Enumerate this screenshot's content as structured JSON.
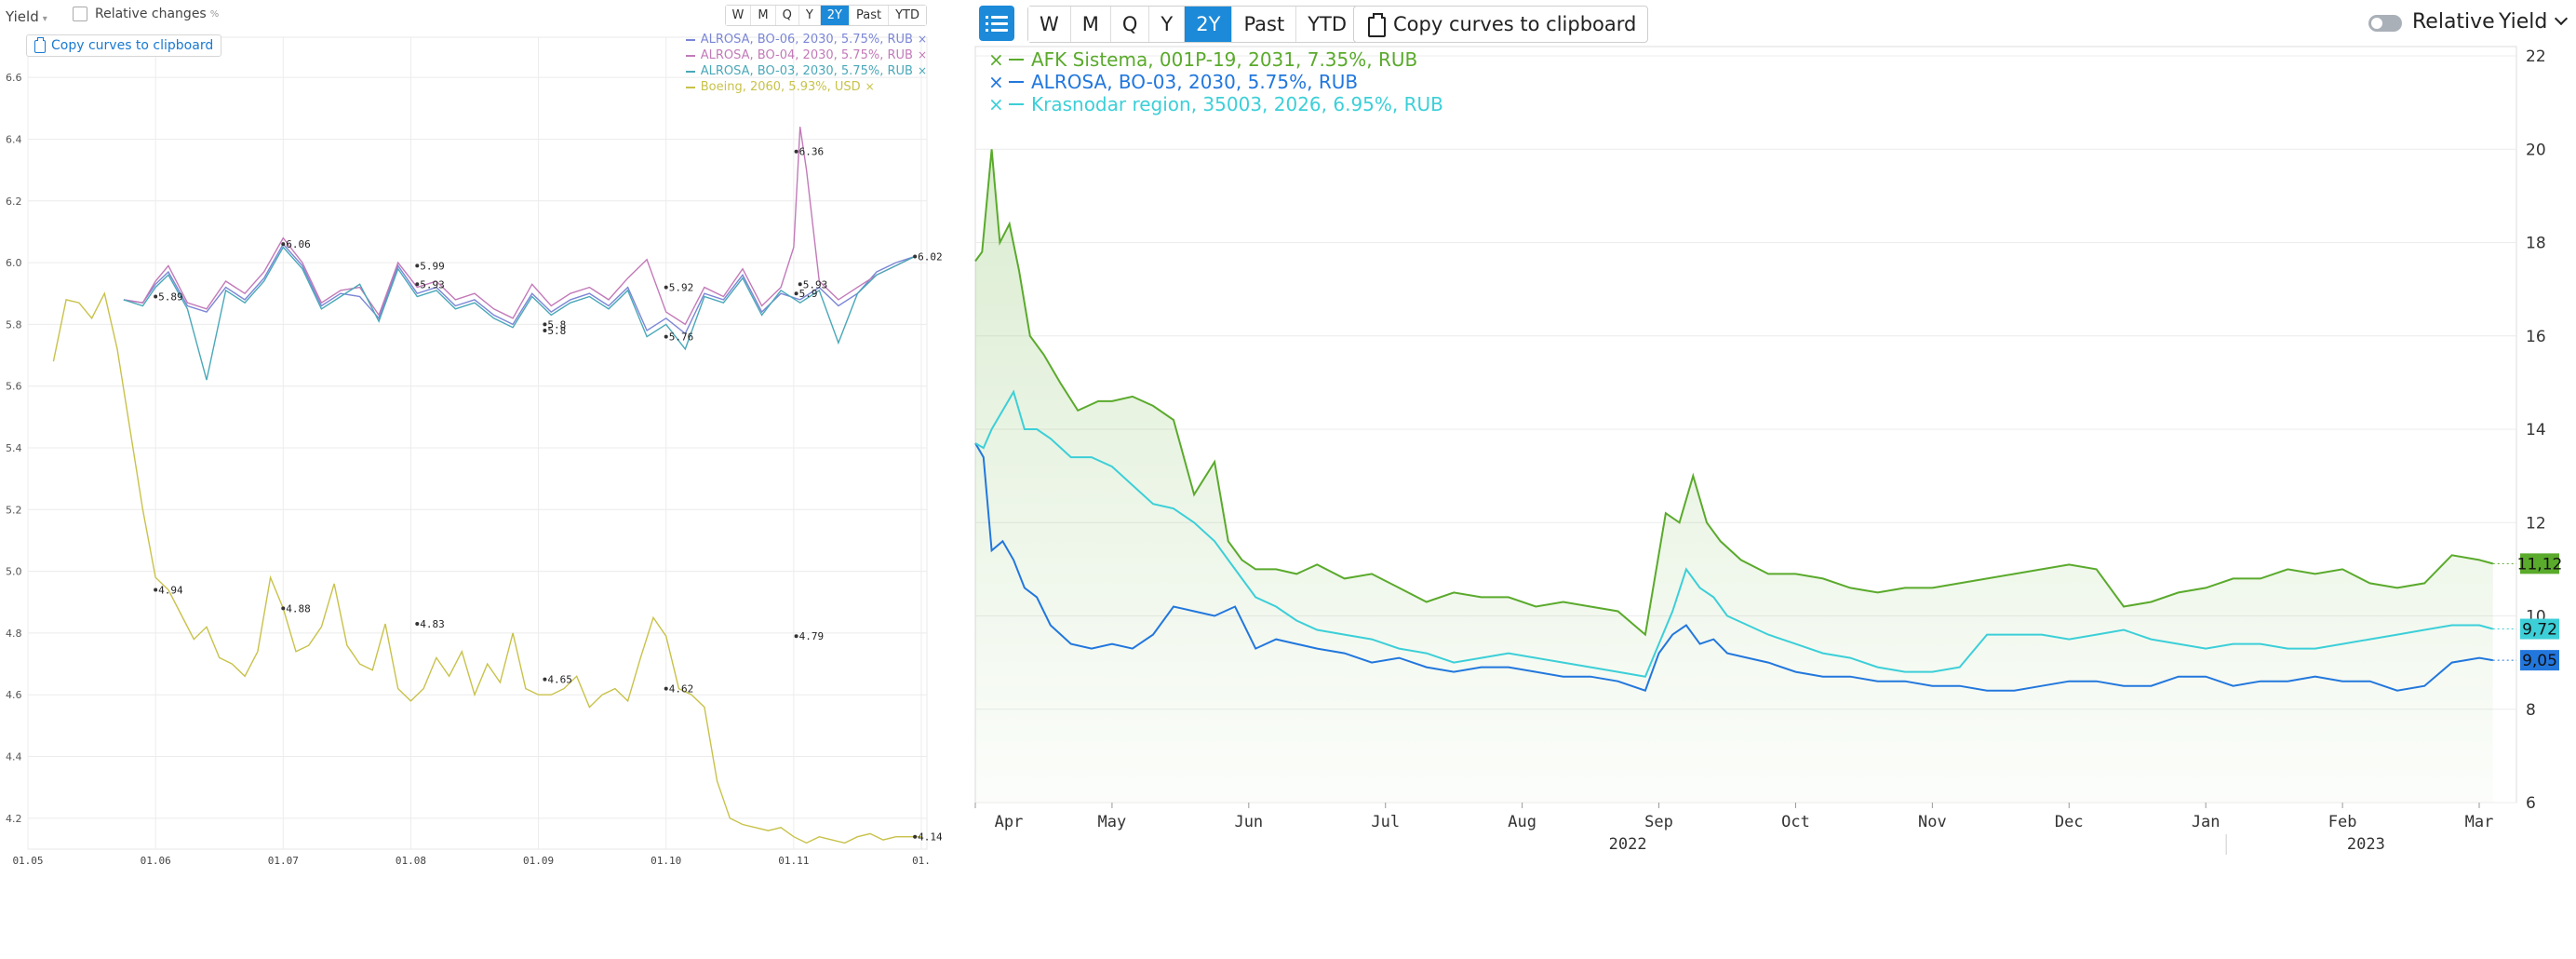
{
  "left": {
    "toolbar": {
      "yield_label": "Yield",
      "relative_label": "Relative changes",
      "relative_unit": "%",
      "periods": [
        "W",
        "M",
        "Q",
        "Y",
        "2Y",
        "Past",
        "YTD"
      ],
      "active_period": "2Y",
      "copy_label": "Copy curves to clipboard"
    },
    "legend": [
      {
        "label": "ALROSA, BO-06, 2030, 5.75%, RUB",
        "color": "#7b86d6"
      },
      {
        "label": "ALROSA, BO-04, 2030, 5.75%, RUB",
        "color": "#c27ab8"
      },
      {
        "label": "ALROSA, BO-03, 2030, 5.75%, RUB",
        "color": "#4aa8b8"
      },
      {
        "label": "Boeing, 2060, 5.93%, USD",
        "color": "#c8c24a"
      }
    ],
    "chart_data": {
      "type": "line",
      "ylim": [
        4.1,
        6.7
      ],
      "yticks": [
        "6.6",
        "6.4",
        "6.2",
        "6.0",
        "5.8",
        "5.6",
        "5.4",
        "5.2",
        "5.0",
        "4.8",
        "4.6",
        "4.4",
        "4.2"
      ],
      "xticks": [
        "01.05",
        "01.06",
        "01.07",
        "01.08",
        "01.09",
        "01.10",
        "01.11",
        "01."
      ],
      "series": [
        {
          "name": "ALROSA, BO-06, 2030, 5.75%, RUB",
          "color": "#7b86d6",
          "x": [
            0.75,
            0.9,
            1.0,
            1.1,
            1.25,
            1.4,
            1.55,
            1.7,
            1.85,
            2.0,
            2.15,
            2.3,
            2.45,
            2.6,
            2.75,
            2.9,
            3.05,
            3.2,
            3.35,
            3.5,
            3.65,
            3.8,
            3.95,
            4.1,
            4.25,
            4.4,
            4.55,
            4.7,
            4.85,
            5.0,
            5.15,
            5.3,
            5.45,
            5.6,
            5.75,
            5.9,
            6.05,
            6.2,
            6.35,
            6.5,
            6.65,
            6.8,
            6.95
          ],
          "y": [
            5.88,
            5.87,
            5.93,
            5.97,
            5.86,
            5.84,
            5.92,
            5.88,
            5.95,
            6.06,
            5.99,
            5.86,
            5.9,
            5.89,
            5.82,
            5.99,
            5.9,
            5.92,
            5.86,
            5.88,
            5.83,
            5.8,
            5.9,
            5.84,
            5.88,
            5.9,
            5.86,
            5.92,
            5.78,
            5.82,
            5.77,
            5.9,
            5.88,
            5.96,
            5.84,
            5.9,
            5.88,
            5.92,
            5.86,
            5.9,
            5.97,
            6.0,
            6.02
          ]
        },
        {
          "name": "ALROSA, BO-04, 2030, 5.75%, RUB",
          "color": "#c27ab8",
          "x": [
            0.75,
            0.9,
            1.0,
            1.1,
            1.25,
            1.4,
            1.55,
            1.7,
            1.85,
            2.0,
            2.15,
            2.3,
            2.45,
            2.6,
            2.75,
            2.9,
            3.05,
            3.2,
            3.35,
            3.5,
            3.65,
            3.8,
            3.95,
            4.1,
            4.25,
            4.4,
            4.55,
            4.7,
            4.85,
            5.0,
            5.15,
            5.3,
            5.45,
            5.6,
            5.75,
            5.9,
            6.0,
            6.05,
            6.1,
            6.2,
            6.35,
            6.5,
            6.65,
            6.8,
            6.95
          ],
          "y": [
            5.88,
            5.87,
            5.94,
            5.99,
            5.87,
            5.85,
            5.94,
            5.9,
            5.97,
            6.08,
            6.0,
            5.87,
            5.91,
            5.92,
            5.83,
            6.0,
            5.92,
            5.94,
            5.88,
            5.9,
            5.85,
            5.82,
            5.93,
            5.86,
            5.9,
            5.92,
            5.88,
            5.95,
            6.01,
            5.84,
            5.8,
            5.92,
            5.89,
            5.98,
            5.86,
            5.92,
            6.05,
            6.44,
            6.3,
            5.94,
            5.88,
            5.92,
            5.96,
            5.99,
            6.02
          ]
        },
        {
          "name": "ALROSA, BO-03, 2030, 5.75%, RUB",
          "color": "#4aa8b8",
          "x": [
            0.75,
            0.9,
            1.0,
            1.1,
            1.25,
            1.4,
            1.55,
            1.7,
            1.85,
            2.0,
            2.15,
            2.3,
            2.45,
            2.6,
            2.75,
            2.9,
            3.05,
            3.2,
            3.35,
            3.5,
            3.65,
            3.8,
            3.95,
            4.1,
            4.25,
            4.4,
            4.55,
            4.7,
            4.85,
            5.0,
            5.15,
            5.3,
            5.45,
            5.6,
            5.75,
            5.9,
            6.05,
            6.2,
            6.35,
            6.5,
            6.65,
            6.8,
            6.95
          ],
          "y": [
            5.88,
            5.86,
            5.92,
            5.96,
            5.85,
            5.62,
            5.91,
            5.87,
            5.94,
            6.05,
            5.98,
            5.85,
            5.89,
            5.93,
            5.81,
            5.98,
            5.89,
            5.91,
            5.85,
            5.87,
            5.82,
            5.79,
            5.89,
            5.83,
            5.87,
            5.89,
            5.85,
            5.91,
            5.76,
            5.8,
            5.72,
            5.89,
            5.87,
            5.95,
            5.83,
            5.91,
            5.87,
            5.91,
            5.74,
            5.9,
            5.96,
            5.99,
            6.02
          ]
        },
        {
          "name": "Boeing, 2060, 5.93%, USD",
          "color": "#c8c24a",
          "x": [
            0.2,
            0.3,
            0.4,
            0.5,
            0.6,
            0.7,
            0.8,
            0.9,
            1.0,
            1.1,
            1.2,
            1.3,
            1.4,
            1.5,
            1.6,
            1.7,
            1.8,
            1.9,
            2.0,
            2.1,
            2.2,
            2.3,
            2.4,
            2.5,
            2.6,
            2.7,
            2.8,
            2.9,
            3.0,
            3.1,
            3.2,
            3.3,
            3.4,
            3.5,
            3.6,
            3.7,
            3.8,
            3.9,
            4.0,
            4.1,
            4.2,
            4.3,
            4.4,
            4.5,
            4.6,
            4.7,
            4.8,
            4.9,
            5.0,
            5.1,
            5.2,
            5.3,
            5.4,
            5.5,
            5.6,
            5.7,
            5.8,
            5.9,
            6.0,
            6.1,
            6.2,
            6.3,
            6.4,
            6.5,
            6.6,
            6.7,
            6.8,
            6.9,
            7.0
          ],
          "y": [
            5.68,
            5.88,
            5.87,
            5.82,
            5.9,
            5.72,
            5.46,
            5.2,
            4.98,
            4.94,
            4.86,
            4.78,
            4.82,
            4.72,
            4.7,
            4.66,
            4.74,
            4.98,
            4.88,
            4.74,
            4.76,
            4.82,
            4.96,
            4.76,
            4.7,
            4.68,
            4.83,
            4.62,
            4.58,
            4.62,
            4.72,
            4.66,
            4.74,
            4.6,
            4.7,
            4.64,
            4.8,
            4.62,
            4.6,
            4.6,
            4.62,
            4.66,
            4.56,
            4.6,
            4.62,
            4.58,
            4.72,
            4.85,
            4.79,
            4.62,
            4.6,
            4.56,
            4.32,
            4.2,
            4.18,
            4.17,
            4.16,
            4.17,
            4.14,
            4.12,
            4.14,
            4.13,
            4.12,
            4.14,
            4.15,
            4.13,
            4.14,
            4.14,
            4.14
          ]
        }
      ],
      "annotations": [
        {
          "text": "5.89",
          "x": 1.0,
          "y": 5.89
        },
        {
          "text": "6.06",
          "x": 2.0,
          "y": 6.06
        },
        {
          "text": "5.99",
          "x": 3.05,
          "y": 5.99
        },
        {
          "text": "5.93",
          "x": 3.05,
          "y": 5.93
        },
        {
          "text": "5.8",
          "x": 4.05,
          "y": 5.8
        },
        {
          "text": "5.8",
          "x": 4.05,
          "y": 5.78
        },
        {
          "text": "5.92",
          "x": 5.0,
          "y": 5.92
        },
        {
          "text": "5.76",
          "x": 5.0,
          "y": 5.76
        },
        {
          "text": "6.36",
          "x": 6.02,
          "y": 6.36
        },
        {
          "text": "5.93",
          "x": 6.05,
          "y": 5.93
        },
        {
          "text": "5.9",
          "x": 6.02,
          "y": 5.9
        },
        {
          "text": "6.02",
          "x": 6.95,
          "y": 6.02
        },
        {
          "text": "4.94",
          "x": 1.0,
          "y": 4.94
        },
        {
          "text": "4.88",
          "x": 2.0,
          "y": 4.88
        },
        {
          "text": "4.83",
          "x": 3.05,
          "y": 4.83
        },
        {
          "text": "4.65",
          "x": 4.05,
          "y": 4.65
        },
        {
          "text": "4.62",
          "x": 5.0,
          "y": 4.62
        },
        {
          "text": "4.79",
          "x": 6.02,
          "y": 4.79
        },
        {
          "text": "4.14",
          "x": 6.95,
          "y": 4.14
        }
      ]
    }
  },
  "right": {
    "toolbar": {
      "periods": [
        "W",
        "M",
        "Q",
        "Y",
        "2Y",
        "Past",
        "YTD"
      ],
      "active_period": "2Y",
      "copy_label": "Copy curves to clipboard",
      "relative_label": "Relative",
      "yield_label": "Yield"
    },
    "legend": [
      {
        "label": "AFK Sistema, 001P-19, 2031, 7.35%, RUB",
        "color": "#5aaa2c"
      },
      {
        "label": "ALROSA, BO-03, 2030, 5.75%, RUB",
        "color": "#2277dd"
      },
      {
        "label": "Krasnodar region, 35003, 2026, 6.95%, RUB",
        "color": "#3ccfd8"
      }
    ],
    "chart_data": {
      "type": "area",
      "ylim": [
        6,
        22
      ],
      "yticks": [
        "22",
        "20",
        "18",
        "16",
        "14",
        "12",
        "10",
        "8",
        "6"
      ],
      "xticks": [
        "Apr",
        "May",
        "Jun",
        "Jul",
        "Aug",
        "Sep",
        "Oct",
        "Nov",
        "Dec",
        "Jan",
        "Feb",
        "Mar"
      ],
      "year_labels": [
        "2022",
        "2023"
      ],
      "series": [
        {
          "name": "AFK Sistema, 001P-19, 2031, 7.35%, RUB",
          "color": "#5aaa2c",
          "last_label": "11,12",
          "x": [
            0,
            0.05,
            0.12,
            0.18,
            0.25,
            0.32,
            0.4,
            0.5,
            0.62,
            0.75,
            0.9,
            1.0,
            1.15,
            1.3,
            1.45,
            1.6,
            1.75,
            1.85,
            1.95,
            2.05,
            2.2,
            2.35,
            2.5,
            2.7,
            2.9,
            3.1,
            3.3,
            3.5,
            3.7,
            3.9,
            4.1,
            4.3,
            4.5,
            4.7,
            4.9,
            5.05,
            5.15,
            5.25,
            5.35,
            5.45,
            5.6,
            5.8,
            6.0,
            6.2,
            6.4,
            6.6,
            6.8,
            7.0,
            7.2,
            7.4,
            7.6,
            7.8,
            8.0,
            8.2,
            8.4,
            8.6,
            8.8,
            9.0,
            9.2,
            9.4,
            9.6,
            9.8,
            10.0,
            10.2,
            10.4,
            10.6,
            10.8,
            11.0,
            11.1
          ],
          "y": [
            17.6,
            17.8,
            20.0,
            18.0,
            18.4,
            17.4,
            16.0,
            15.6,
            15.0,
            14.4,
            14.6,
            14.6,
            14.7,
            14.5,
            14.2,
            12.6,
            13.3,
            11.6,
            11.2,
            11.0,
            11.0,
            10.9,
            11.1,
            10.8,
            10.9,
            10.6,
            10.3,
            10.5,
            10.4,
            10.4,
            10.2,
            10.3,
            10.2,
            10.1,
            9.6,
            12.2,
            12.0,
            13.0,
            12.0,
            11.6,
            11.2,
            10.9,
            10.9,
            10.8,
            10.6,
            10.5,
            10.6,
            10.6,
            10.7,
            10.8,
            10.9,
            11.0,
            11.1,
            11.0,
            10.2,
            10.3,
            10.5,
            10.6,
            10.8,
            10.8,
            11.0,
            10.9,
            11.0,
            10.7,
            10.6,
            10.7,
            11.3,
            11.2,
            11.12
          ]
        },
        {
          "name": "ALROSA, BO-03, 2030, 5.75%, RUB",
          "color": "#2277dd",
          "last_label": "9,05",
          "x": [
            0,
            0.06,
            0.12,
            0.2,
            0.28,
            0.36,
            0.45,
            0.55,
            0.7,
            0.85,
            1.0,
            1.15,
            1.3,
            1.45,
            1.6,
            1.75,
            1.9,
            2.05,
            2.2,
            2.35,
            2.5,
            2.7,
            2.9,
            3.1,
            3.3,
            3.5,
            3.7,
            3.9,
            4.1,
            4.3,
            4.5,
            4.7,
            4.9,
            5.0,
            5.1,
            5.2,
            5.3,
            5.4,
            5.5,
            5.65,
            5.8,
            6.0,
            6.2,
            6.4,
            6.6,
            6.8,
            7.0,
            7.2,
            7.4,
            7.6,
            7.8,
            8.0,
            8.2,
            8.4,
            8.6,
            8.8,
            9.0,
            9.2,
            9.4,
            9.6,
            9.8,
            10.0,
            10.2,
            10.4,
            10.6,
            10.8,
            11.0,
            11.1
          ],
          "y": [
            13.7,
            13.4,
            11.4,
            11.6,
            11.2,
            10.6,
            10.4,
            9.8,
            9.4,
            9.3,
            9.4,
            9.3,
            9.6,
            10.2,
            10.1,
            10.0,
            10.2,
            9.3,
            9.5,
            9.4,
            9.3,
            9.2,
            9.0,
            9.1,
            8.9,
            8.8,
            8.9,
            8.9,
            8.8,
            8.7,
            8.7,
            8.6,
            8.4,
            9.2,
            9.6,
            9.8,
            9.4,
            9.5,
            9.2,
            9.1,
            9.0,
            8.8,
            8.7,
            8.7,
            8.6,
            8.6,
            8.5,
            8.5,
            8.4,
            8.4,
            8.5,
            8.6,
            8.6,
            8.5,
            8.5,
            8.7,
            8.7,
            8.5,
            8.6,
            8.6,
            8.7,
            8.6,
            8.6,
            8.4,
            8.5,
            9.0,
            9.1,
            9.05
          ]
        },
        {
          "name": "Krasnodar region, 35003, 2026, 6.95%, RUB",
          "color": "#3ccfd8",
          "last_label": "9,72",
          "x": [
            0,
            0.06,
            0.12,
            0.2,
            0.28,
            0.36,
            0.45,
            0.55,
            0.7,
            0.85,
            1.0,
            1.15,
            1.3,
            1.45,
            1.6,
            1.75,
            1.9,
            2.05,
            2.2,
            2.35,
            2.5,
            2.7,
            2.9,
            3.1,
            3.3,
            3.5,
            3.7,
            3.9,
            4.1,
            4.3,
            4.5,
            4.7,
            4.9,
            5.0,
            5.1,
            5.2,
            5.3,
            5.4,
            5.5,
            5.65,
            5.8,
            6.0,
            6.2,
            6.4,
            6.6,
            6.8,
            7.0,
            7.2,
            7.4,
            7.6,
            7.8,
            8.0,
            8.2,
            8.4,
            8.6,
            8.8,
            9.0,
            9.2,
            9.4,
            9.6,
            9.8,
            10.0,
            10.2,
            10.4,
            10.6,
            10.8,
            11.0,
            11.1
          ],
          "y": [
            13.7,
            13.6,
            14.0,
            14.4,
            14.8,
            14.0,
            14.0,
            13.8,
            13.4,
            13.4,
            13.2,
            12.8,
            12.4,
            12.3,
            12.0,
            11.6,
            11.0,
            10.4,
            10.2,
            9.9,
            9.7,
            9.6,
            9.5,
            9.3,
            9.2,
            9.0,
            9.1,
            9.2,
            9.1,
            9.0,
            8.9,
            8.8,
            8.7,
            9.4,
            10.1,
            11.0,
            10.6,
            10.4,
            10.0,
            9.8,
            9.6,
            9.4,
            9.2,
            9.1,
            8.9,
            8.8,
            8.8,
            8.9,
            9.6,
            9.6,
            9.6,
            9.5,
            9.6,
            9.7,
            9.5,
            9.4,
            9.3,
            9.4,
            9.4,
            9.3,
            9.3,
            9.4,
            9.5,
            9.6,
            9.7,
            9.8,
            9.8,
            9.72
          ]
        }
      ]
    }
  }
}
